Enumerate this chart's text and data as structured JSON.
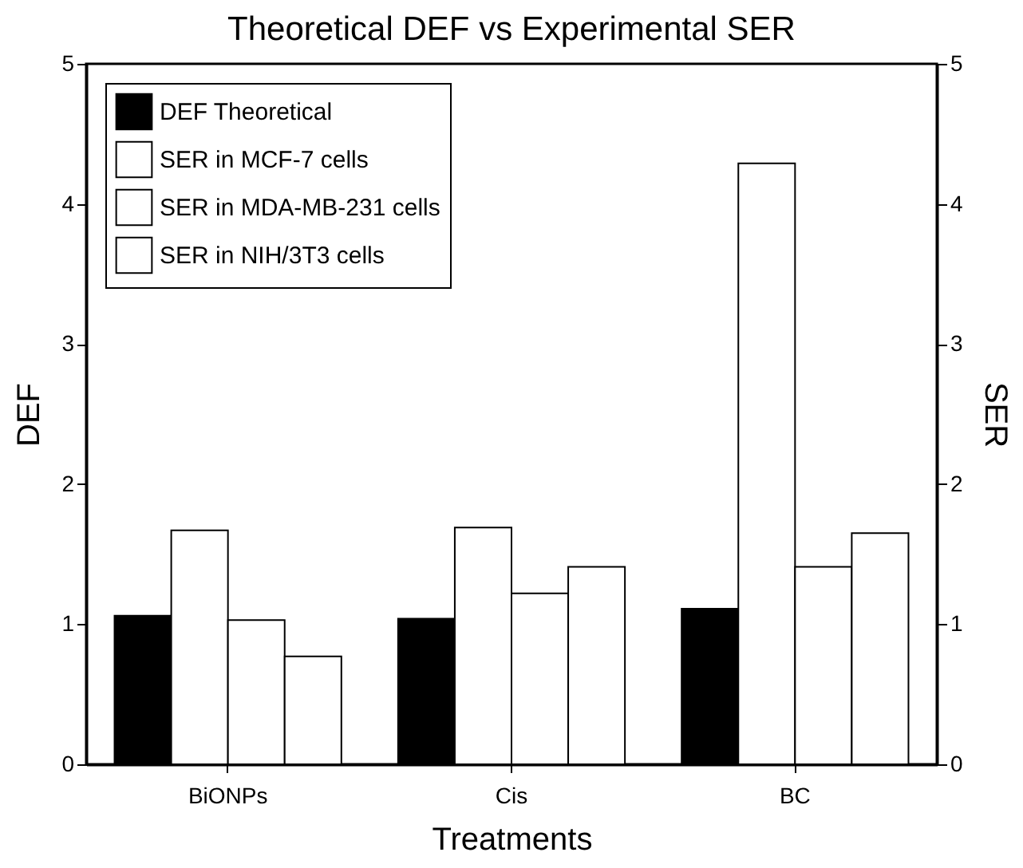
{
  "chart_data": {
    "type": "bar",
    "title": "Theoretical DEF vs Experimental SER",
    "xlabel": "Treatments",
    "ylabel": "DEF",
    "y2label": "SER",
    "categories": [
      "BiONPs",
      "Cis",
      "BC"
    ],
    "series": [
      {
        "name": "DEF Theoretical",
        "color": "#000000",
        "values": [
          1.06,
          1.04,
          1.11
        ]
      },
      {
        "name": "SER in MCF-7 cells",
        "color": "#ffffff",
        "values": [
          1.67,
          1.69,
          4.29
        ],
        "axis": "y2"
      },
      {
        "name": "SER in MDA-MB-231 cells",
        "color": "#ffffff",
        "values": [
          1.03,
          1.22,
          1.41
        ],
        "axis": "y2"
      },
      {
        "name": "SER in NIH/3T3 cells",
        "color": "#ffffff",
        "values": [
          0.77,
          1.41,
          1.65
        ],
        "axis": "y2"
      }
    ],
    "ylim": [
      0,
      5
    ],
    "yticks": [
      0,
      1,
      2,
      3,
      4,
      5
    ],
    "y2lim": [
      0,
      5
    ],
    "y2ticks": [
      0,
      1,
      2,
      3,
      4,
      5
    ],
    "grid": false,
    "legend": "top left"
  }
}
